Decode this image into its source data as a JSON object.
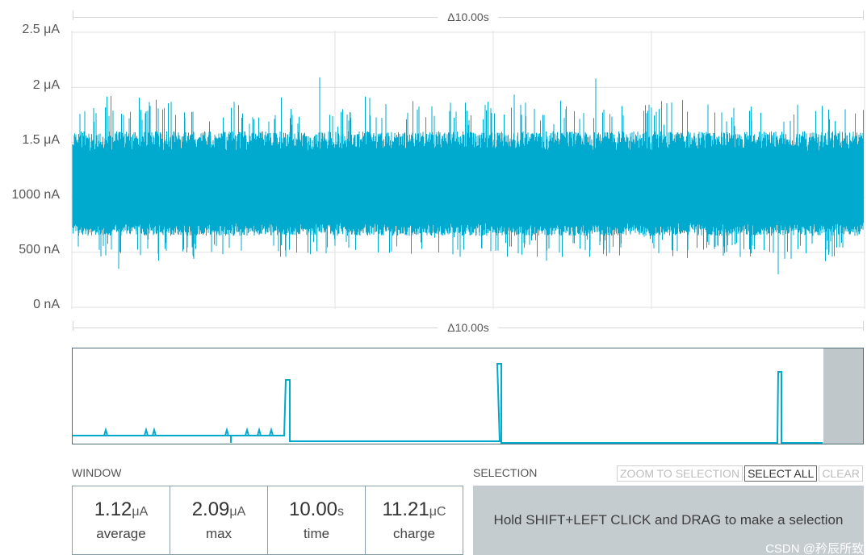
{
  "main_window_delta": "Δ10.00s",
  "overview_window_delta": "Δ10.00s",
  "y_axis_ticks": [
    "2.5 μA",
    "2 μA",
    "1.5 μA",
    "1000 nA",
    "500 nA",
    "0 nA"
  ],
  "colors": {
    "trace": "#00a9ce",
    "selection_box": "#c4ccd0",
    "overview_border": "#4d6f79"
  },
  "chart_data": {
    "type": "line",
    "ylim_nA": [
      0,
      2500
    ],
    "x_range_s": 10.0,
    "noise_band_nA": [
      650,
      1600
    ],
    "spike_peaks_nA": [
      2090,
      2080,
      350,
      300
    ]
  },
  "window": {
    "label": "WINDOW",
    "stats": [
      {
        "value": "1.12",
        "unit": "μA",
        "name": "average"
      },
      {
        "value": "2.09",
        "unit": "μA",
        "name": "max"
      },
      {
        "value": "10.00",
        "unit": "s",
        "name": "time"
      },
      {
        "value": "11.21",
        "unit": "μC",
        "name": "charge"
      }
    ]
  },
  "selection": {
    "label": "SELECTION",
    "zoom_button": "ZOOM TO SELECTION",
    "select_all_button": "SELECT ALL",
    "clear_button": "CLEAR",
    "hint": "Hold SHIFT+LEFT CLICK and DRAG to make a selection"
  },
  "watermark": "CSDN @矜辰所致"
}
